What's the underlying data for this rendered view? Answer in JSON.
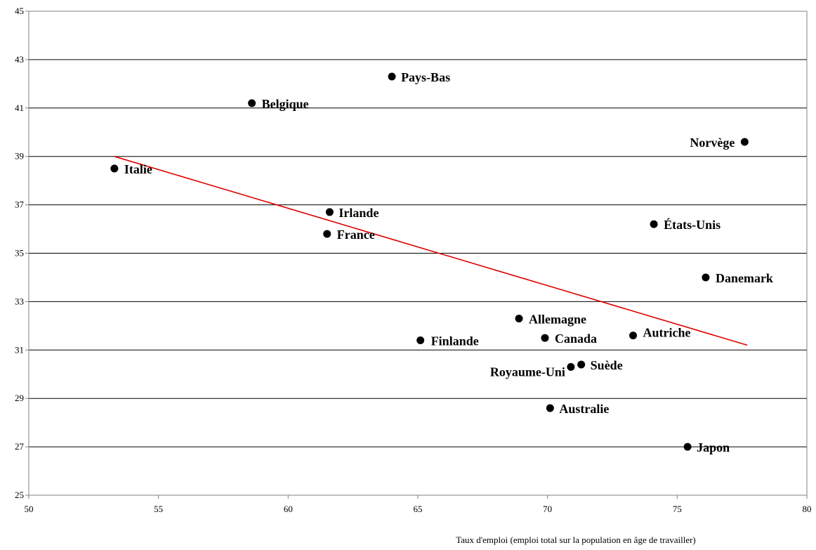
{
  "chart_data": {
    "type": "scatter",
    "title": "",
    "xlabel": "Taux d'emploi (emploi total sur la population en âge de travailler)",
    "ylabel": "",
    "xlim": [
      50,
      80
    ],
    "ylim": [
      25,
      45
    ],
    "x_ticks": [
      "50",
      "55",
      "60",
      "65",
      "70",
      "75",
      "80"
    ],
    "y_ticks": [
      "25",
      "27",
      "29",
      "31",
      "33",
      "35",
      "37",
      "39",
      "41",
      "43",
      "45"
    ],
    "grid": "horizontal",
    "points": [
      {
        "label": "Pays-Bas",
        "x": 64.0,
        "y": 42.3
      },
      {
        "label": "Belgique",
        "x": 58.6,
        "y": 41.2
      },
      {
        "label": "Norvège",
        "x": 77.6,
        "y": 39.6
      },
      {
        "label": "Italie",
        "x": 53.3,
        "y": 38.5
      },
      {
        "label": "Irlande",
        "x": 61.6,
        "y": 36.7
      },
      {
        "label": "États-Unis",
        "x": 74.1,
        "y": 36.2
      },
      {
        "label": "France",
        "x": 61.5,
        "y": 35.8
      },
      {
        "label": "Danemark",
        "x": 76.1,
        "y": 34.0
      },
      {
        "label": "Allemagne",
        "x": 68.9,
        "y": 32.3
      },
      {
        "label": "Autriche",
        "x": 73.3,
        "y": 31.6
      },
      {
        "label": "Canada",
        "x": 69.9,
        "y": 31.5
      },
      {
        "label": "Finlande",
        "x": 65.1,
        "y": 31.4
      },
      {
        "label": "Royaume-Uni",
        "x": 70.9,
        "y": 30.3
      },
      {
        "label": "Suède",
        "x": 71.3,
        "y": 30.4
      },
      {
        "label": "Australie",
        "x": 70.1,
        "y": 28.6
      },
      {
        "label": "Japon",
        "x": 75.4,
        "y": 27.0
      }
    ],
    "trendline": {
      "x": [
        53.3,
        77.7
      ],
      "y": [
        39.0,
        31.2
      ],
      "color": "#e00000"
    },
    "point_color": "#000000"
  }
}
